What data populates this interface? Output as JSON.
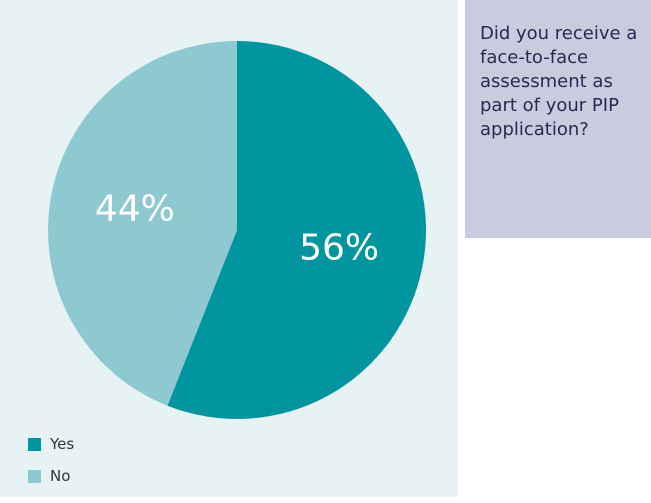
{
  "question": "Did you receive a face-to-face assessment as part of your PIP application?",
  "chart_data": {
    "type": "pie",
    "title": "",
    "slices": [
      {
        "label": "Yes",
        "value": 56,
        "display": "56%",
        "color": "#00959f"
      },
      {
        "label": "No",
        "value": 44,
        "display": "44%",
        "color": "#8ec9d1"
      }
    ],
    "legend_position": "bottom-left"
  },
  "legend": [
    {
      "label": "Yes",
      "color": "#00959f"
    },
    {
      "label": "No",
      "color": "#8ec9d1"
    }
  ],
  "colors": {
    "panel_background": "#e6f2f4",
    "question_background": "#cbcbe0",
    "question_text": "#252b50"
  }
}
